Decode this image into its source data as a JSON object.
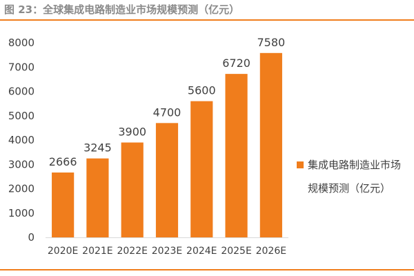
{
  "figure": {
    "label": "图 23",
    "separator": "：",
    "title": "全球集成电路制造业市场规模预测（亿元）"
  },
  "legend": {
    "line1": "集成电路制造业市场",
    "line2": "规模预测（亿元）"
  },
  "colors": {
    "bar": "#f07d1c",
    "accent_rule": "#f07d1c",
    "axis_text": "#404040",
    "title_text": "#8a8a8a"
  },
  "chart_data": {
    "type": "bar",
    "title": "全球集成电路制造业市场规模预测（亿元）",
    "categories": [
      "2020E",
      "2021E",
      "2022E",
      "2023E",
      "2024E",
      "2025E",
      "2026E"
    ],
    "series": [
      {
        "name": "集成电路制造业市场规模预测（亿元）",
        "values": [
          2666,
          3245,
          3900,
          4700,
          5600,
          6720,
          7580
        ]
      }
    ],
    "ylim": [
      0,
      8000
    ],
    "yticks": [
      0,
      1000,
      2000,
      3000,
      4000,
      5000,
      6000,
      7000,
      8000
    ],
    "grid": false,
    "legend_position": "right",
    "data_labels": true,
    "xlabel": "",
    "ylabel": ""
  }
}
